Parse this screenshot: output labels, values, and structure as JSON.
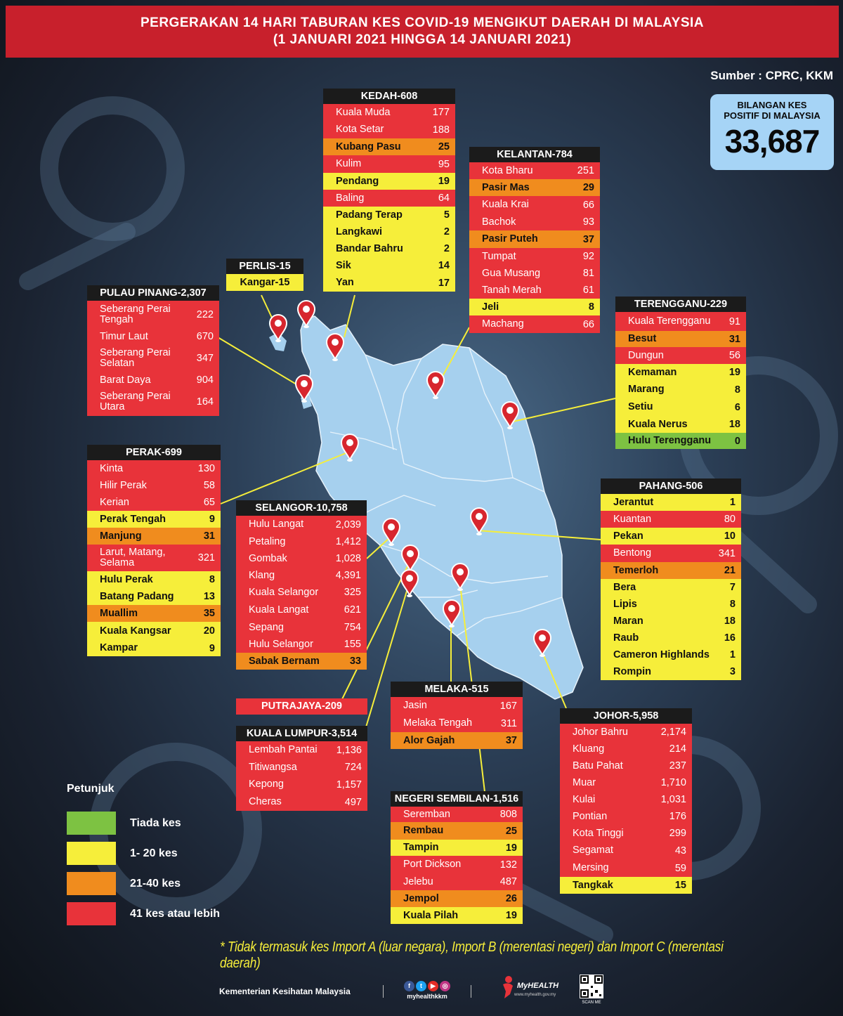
{
  "title": {
    "line1": "PERGERAKAN 14 HARI TABURAN KES COVID-19 MENGIKUT DAERAH DI MALAYSIA",
    "line2": "(1 JANUARI 2021 HINGGA 14 JANUARI 2021)"
  },
  "source": "Sumber : CPRC, KKM",
  "total": {
    "label_line1": "BILANGAN KES",
    "label_line2": "POSITIF DI MALAYSIA",
    "value": "33,687"
  },
  "colors": {
    "red": "#e8333a",
    "orange": "#f08c1e",
    "yellow": "#f6ee3a",
    "green": "#7dc242",
    "title_bg": "#c8202c",
    "map_fill": "#a6d0ee",
    "header_bg": "#1b1b1b"
  },
  "states": [
    {
      "name": "KEDAH-608",
      "districts": [
        {
          "name": "Kuala Muda",
          "value": "177",
          "color": "red"
        },
        {
          "name": "Kota Setar",
          "value": "188",
          "color": "red"
        },
        {
          "name": "Kubang Pasu",
          "value": "25",
          "color": "orange"
        },
        {
          "name": "Kulim",
          "value": "95",
          "color": "red"
        },
        {
          "name": "Pendang",
          "value": "19",
          "color": "yellow"
        },
        {
          "name": "Baling",
          "value": "64",
          "color": "red"
        },
        {
          "name": "Padang Terap",
          "value": "5",
          "color": "yellow"
        },
        {
          "name": "Langkawi",
          "value": "2",
          "color": "yellow"
        },
        {
          "name": "Bandar Bahru",
          "value": "2",
          "color": "yellow"
        },
        {
          "name": "Sik",
          "value": "14",
          "color": "yellow"
        },
        {
          "name": "Yan",
          "value": "17",
          "color": "yellow"
        }
      ]
    },
    {
      "name": "KELANTAN-784",
      "districts": [
        {
          "name": "Kota Bharu",
          "value": "251",
          "color": "red"
        },
        {
          "name": "Pasir Mas",
          "value": "29",
          "color": "orange"
        },
        {
          "name": "Kuala Krai",
          "value": "66",
          "color": "red"
        },
        {
          "name": "Bachok",
          "value": "93",
          "color": "red"
        },
        {
          "name": "Pasir Puteh",
          "value": "37",
          "color": "orange"
        },
        {
          "name": "Tumpat",
          "value": "92",
          "color": "red"
        },
        {
          "name": "Gua Musang",
          "value": "81",
          "color": "red"
        },
        {
          "name": "Tanah Merah",
          "value": "61",
          "color": "red"
        },
        {
          "name": "Jeli",
          "value": "8",
          "color": "yellow"
        },
        {
          "name": "Machang",
          "value": "66",
          "color": "red"
        }
      ]
    },
    {
      "name": "PERLIS-15",
      "districts": [
        {
          "name": "Kangar-15",
          "value": "",
          "color": "yellow"
        }
      ]
    },
    {
      "name": "PULAU PINANG-2,307",
      "districts": [
        {
          "name": "Seberang Perai Tengah",
          "value": "222",
          "color": "red"
        },
        {
          "name": "Timur Laut",
          "value": "670",
          "color": "red"
        },
        {
          "name": "Seberang Perai Selatan",
          "value": "347",
          "color": "red"
        },
        {
          "name": "Barat Daya",
          "value": "904",
          "color": "red"
        },
        {
          "name": "Seberang Perai Utara",
          "value": "164",
          "color": "red"
        }
      ]
    },
    {
      "name": "TERENGGANU-229",
      "districts": [
        {
          "name": "Kuala Terengganu",
          "value": "91",
          "color": "red"
        },
        {
          "name": "Besut",
          "value": "31",
          "color": "orange"
        },
        {
          "name": "Dungun",
          "value": "56",
          "color": "red"
        },
        {
          "name": "Kemaman",
          "value": "19",
          "color": "yellow"
        },
        {
          "name": "Marang",
          "value": "8",
          "color": "yellow"
        },
        {
          "name": "Setiu",
          "value": "6",
          "color": "yellow"
        },
        {
          "name": "Kuala Nerus",
          "value": "18",
          "color": "yellow"
        },
        {
          "name": "Hulu Terengganu",
          "value": "0",
          "color": "green"
        }
      ]
    },
    {
      "name": "PERAK-699",
      "districts": [
        {
          "name": "Kinta",
          "value": "130",
          "color": "red"
        },
        {
          "name": "Hilir Perak",
          "value": "58",
          "color": "red"
        },
        {
          "name": "Kerian",
          "value": "65",
          "color": "red"
        },
        {
          "name": "Perak Tengah",
          "value": "9",
          "color": "yellow"
        },
        {
          "name": "Manjung",
          "value": "31",
          "color": "orange"
        },
        {
          "name": "Larut, Matang, Selama",
          "value": "321",
          "color": "red"
        },
        {
          "name": "Hulu Perak",
          "value": "8",
          "color": "yellow"
        },
        {
          "name": "Batang Padang",
          "value": "13",
          "color": "yellow"
        },
        {
          "name": "Muallim",
          "value": "35",
          "color": "orange"
        },
        {
          "name": "Kuala Kangsar",
          "value": "20",
          "color": "yellow"
        },
        {
          "name": "Kampar",
          "value": "9",
          "color": "yellow"
        }
      ]
    },
    {
      "name": "SELANGOR-10,758",
      "districts": [
        {
          "name": "Hulu Langat",
          "value": "2,039",
          "color": "red"
        },
        {
          "name": "Petaling",
          "value": "1,412",
          "color": "red"
        },
        {
          "name": "Gombak",
          "value": "1,028",
          "color": "red"
        },
        {
          "name": "Klang",
          "value": "4,391",
          "color": "red"
        },
        {
          "name": "Kuala Selangor",
          "value": "325",
          "color": "red"
        },
        {
          "name": "Kuala Langat",
          "value": "621",
          "color": "red"
        },
        {
          "name": "Sepang",
          "value": "754",
          "color": "red"
        },
        {
          "name": "Hulu Selangor",
          "value": "155",
          "color": "red"
        },
        {
          "name": "Sabak Bernam",
          "value": "33",
          "color": "orange"
        }
      ]
    },
    {
      "name": "PAHANG-506",
      "districts": [
        {
          "name": "Jerantut",
          "value": "1",
          "color": "yellow"
        },
        {
          "name": "Kuantan",
          "value": "80",
          "color": "red"
        },
        {
          "name": "Pekan",
          "value": "10",
          "color": "yellow"
        },
        {
          "name": "Bentong",
          "value": "341",
          "color": "red"
        },
        {
          "name": "Temerloh",
          "value": "21",
          "color": "orange"
        },
        {
          "name": "Bera",
          "value": "7",
          "color": "yellow"
        },
        {
          "name": "Lipis",
          "value": "8",
          "color": "yellow"
        },
        {
          "name": "Maran",
          "value": "18",
          "color": "yellow"
        },
        {
          "name": "Raub",
          "value": "16",
          "color": "yellow"
        },
        {
          "name": "Cameron Highlands",
          "value": "1",
          "color": "yellow"
        },
        {
          "name": "Rompin",
          "value": "3",
          "color": "yellow"
        }
      ]
    },
    {
      "name": "PUTRAJAYA-209",
      "districts": []
    },
    {
      "name": "MELAKA-515",
      "districts": [
        {
          "name": "Jasin",
          "value": "167",
          "color": "red"
        },
        {
          "name": "Melaka Tengah",
          "value": "311",
          "color": "red"
        },
        {
          "name": "Alor Gajah",
          "value": "37",
          "color": "orange"
        }
      ]
    },
    {
      "name": "KUALA LUMPUR-3,514",
      "districts": [
        {
          "name": "Lembah Pantai",
          "value": "1,136",
          "color": "red"
        },
        {
          "name": "Titiwangsa",
          "value": "724",
          "color": "red"
        },
        {
          "name": "Kepong",
          "value": "1,157",
          "color": "red"
        },
        {
          "name": "Cheras",
          "value": "497",
          "color": "red"
        }
      ]
    },
    {
      "name": "JOHOR-5,958",
      "districts": [
        {
          "name": "Johor Bahru",
          "value": "2,174",
          "color": "red"
        },
        {
          "name": "Kluang",
          "value": "214",
          "color": "red"
        },
        {
          "name": "Batu Pahat",
          "value": "237",
          "color": "red"
        },
        {
          "name": "Muar",
          "value": "1,710",
          "color": "red"
        },
        {
          "name": "Kulai",
          "value": "1,031",
          "color": "red"
        },
        {
          "name": "Pontian",
          "value": "176",
          "color": "red"
        },
        {
          "name": "Kota Tinggi",
          "value": "299",
          "color": "red"
        },
        {
          "name": "Segamat",
          "value": "43",
          "color": "red"
        },
        {
          "name": "Mersing",
          "value": "59",
          "color": "red"
        },
        {
          "name": "Tangkak",
          "value": "15",
          "color": "yellow"
        }
      ]
    },
    {
      "name": "NEGERI SEMBILAN-1,516",
      "districts": [
        {
          "name": "Seremban",
          "value": "808",
          "color": "red"
        },
        {
          "name": "Rembau",
          "value": "25",
          "color": "orange"
        },
        {
          "name": "Tampin",
          "value": "19",
          "color": "yellow"
        },
        {
          "name": "Port Dickson",
          "value": "132",
          "color": "red"
        },
        {
          "name": "Jelebu",
          "value": "487",
          "color": "red"
        },
        {
          "name": "Jempol",
          "value": "26",
          "color": "orange"
        },
        {
          "name": "Kuala Pilah",
          "value": "19",
          "color": "yellow"
        }
      ]
    }
  ],
  "legend": {
    "title": "Petunjuk",
    "items": [
      {
        "label": "Tiada kes",
        "color": "green"
      },
      {
        "label": "1- 20 kes",
        "color": "yellow"
      },
      {
        "label": "21-40 kes",
        "color": "orange"
      },
      {
        "label": "41 kes atau lebih",
        "color": "red"
      }
    ]
  },
  "note": "* Tidak termasuk kes Import A (luar negara),  Import B (merentasi negeri) dan Import C (merentasi daerah)",
  "footer": {
    "org": "Kementerian Kesihatan Malaysia",
    "social_handle": "myhealthkkm",
    "myhealth": "MyHEALTH",
    "myhealth_url": "www.myhealth.gov.my",
    "qr_label": "SCAN ME"
  }
}
